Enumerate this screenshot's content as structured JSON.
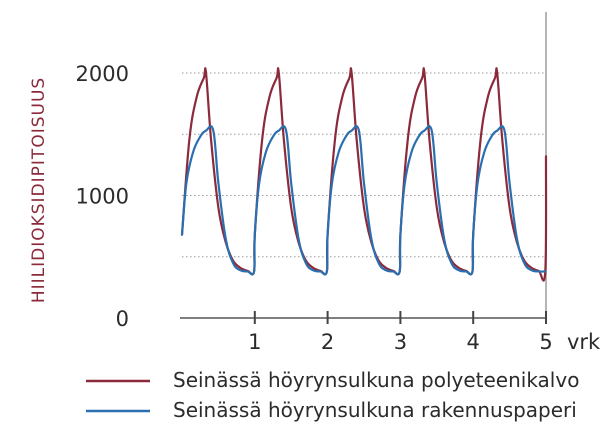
{
  "chart_data": {
    "type": "line",
    "title": "",
    "xlabel": "",
    "ylabel": "HIILIDIOKSIDIPITOISUUS",
    "x_unit": "vrk",
    "xlim": [
      0,
      5
    ],
    "ylim": [
      0,
      2000
    ],
    "x_ticks": [
      1,
      2,
      3,
      4,
      5
    ],
    "y_ticks": [
      0,
      1000,
      2000
    ],
    "y_gridlines": [
      500,
      1000,
      1500,
      2000
    ],
    "grid": "horizontal-dotted",
    "legend_position": "bottom",
    "cycles": 5,
    "series": [
      {
        "name": "Seinässä höyrynsulkuna polyeteenikalvo",
        "color": "#8b2a3a",
        "points": [
          [
            0.0,
            680
          ],
          [
            0.1,
            1450
          ],
          [
            0.2,
            1800
          ],
          [
            0.3,
            1960
          ],
          [
            0.33,
            2000
          ],
          [
            0.4,
            1450
          ],
          [
            0.5,
            900
          ],
          [
            0.6,
            620
          ],
          [
            0.7,
            470
          ],
          [
            0.8,
            410
          ],
          [
            0.9,
            385
          ],
          [
            0.99,
            380
          ],
          [
            1.0,
            680
          ],
          [
            1.1,
            1450
          ],
          [
            1.2,
            1800
          ],
          [
            1.3,
            1960
          ],
          [
            1.33,
            2000
          ],
          [
            1.4,
            1450
          ],
          [
            1.5,
            900
          ],
          [
            1.6,
            620
          ],
          [
            1.7,
            470
          ],
          [
            1.8,
            410
          ],
          [
            1.9,
            385
          ],
          [
            1.99,
            380
          ],
          [
            2.0,
            680
          ],
          [
            2.1,
            1450
          ],
          [
            2.2,
            1800
          ],
          [
            2.3,
            1960
          ],
          [
            2.33,
            2000
          ],
          [
            2.4,
            1450
          ],
          [
            2.5,
            900
          ],
          [
            2.6,
            620
          ],
          [
            2.7,
            470
          ],
          [
            2.8,
            410
          ],
          [
            2.9,
            385
          ],
          [
            2.99,
            380
          ],
          [
            3.0,
            680
          ],
          [
            3.1,
            1450
          ],
          [
            3.2,
            1800
          ],
          [
            3.3,
            1960
          ],
          [
            3.33,
            2000
          ],
          [
            3.4,
            1450
          ],
          [
            3.5,
            900
          ],
          [
            3.6,
            620
          ],
          [
            3.7,
            470
          ],
          [
            3.8,
            410
          ],
          [
            3.9,
            385
          ],
          [
            3.99,
            380
          ],
          [
            4.0,
            680
          ],
          [
            4.1,
            1450
          ],
          [
            4.2,
            1800
          ],
          [
            4.3,
            1960
          ],
          [
            4.33,
            2000
          ],
          [
            4.4,
            1450
          ],
          [
            4.5,
            900
          ],
          [
            4.6,
            620
          ],
          [
            4.7,
            470
          ],
          [
            4.8,
            410
          ],
          [
            4.9,
            385
          ],
          [
            4.99,
            380
          ],
          [
            5.0,
            1320
          ]
        ]
      },
      {
        "name": "Seinässä höyrynsulkuna rakennuspaperi",
        "color": "#2a6fb0",
        "points": [
          [
            0.0,
            680
          ],
          [
            0.06,
            1100
          ],
          [
            0.15,
            1350
          ],
          [
            0.25,
            1480
          ],
          [
            0.33,
            1530
          ],
          [
            0.43,
            1530
          ],
          [
            0.5,
            1100
          ],
          [
            0.6,
            650
          ],
          [
            0.7,
            450
          ],
          [
            0.8,
            390
          ],
          [
            0.9,
            380
          ],
          [
            0.99,
            380
          ],
          [
            1.0,
            680
          ],
          [
            1.06,
            1100
          ],
          [
            1.15,
            1350
          ],
          [
            1.25,
            1480
          ],
          [
            1.33,
            1530
          ],
          [
            1.43,
            1530
          ],
          [
            1.5,
            1100
          ],
          [
            1.6,
            650
          ],
          [
            1.7,
            450
          ],
          [
            1.8,
            390
          ],
          [
            1.9,
            380
          ],
          [
            1.99,
            380
          ],
          [
            2.0,
            680
          ],
          [
            2.06,
            1100
          ],
          [
            2.15,
            1350
          ],
          [
            2.25,
            1480
          ],
          [
            2.33,
            1530
          ],
          [
            2.43,
            1530
          ],
          [
            2.5,
            1100
          ],
          [
            2.6,
            650
          ],
          [
            2.7,
            450
          ],
          [
            2.8,
            390
          ],
          [
            2.9,
            380
          ],
          [
            2.99,
            380
          ],
          [
            3.0,
            680
          ],
          [
            3.06,
            1100
          ],
          [
            3.15,
            1350
          ],
          [
            3.25,
            1480
          ],
          [
            3.33,
            1530
          ],
          [
            3.43,
            1530
          ],
          [
            3.5,
            1100
          ],
          [
            3.6,
            650
          ],
          [
            3.7,
            450
          ],
          [
            3.8,
            390
          ],
          [
            3.9,
            380
          ],
          [
            3.99,
            380
          ],
          [
            4.0,
            680
          ],
          [
            4.06,
            1100
          ],
          [
            4.15,
            1350
          ],
          [
            4.25,
            1480
          ],
          [
            4.33,
            1530
          ],
          [
            4.43,
            1530
          ],
          [
            4.5,
            1100
          ],
          [
            4.6,
            650
          ],
          [
            4.7,
            450
          ],
          [
            4.8,
            390
          ],
          [
            4.9,
            380
          ],
          [
            4.99,
            380
          ]
        ]
      }
    ]
  }
}
